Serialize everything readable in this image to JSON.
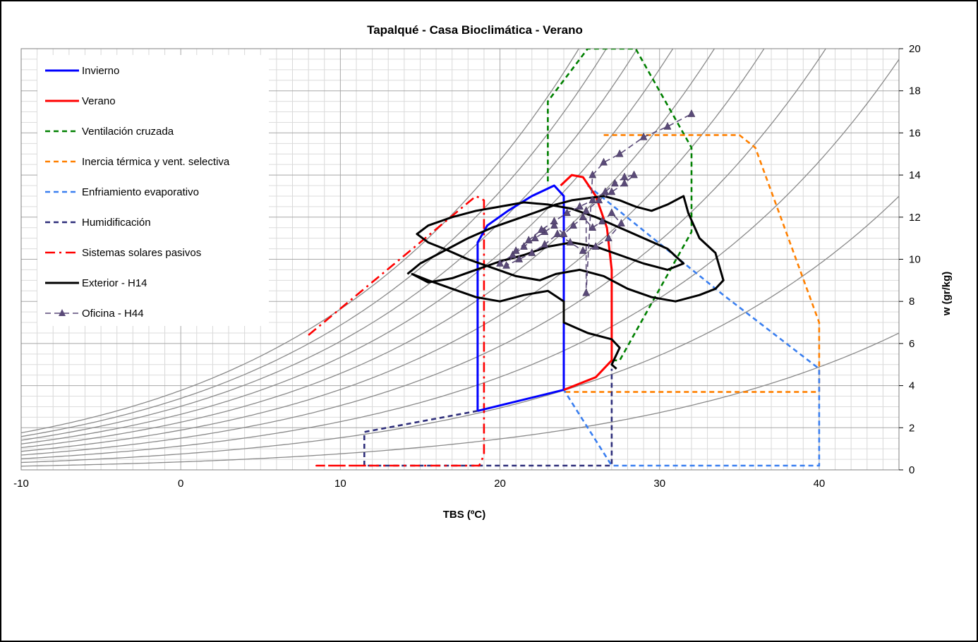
{
  "chart_data": {
    "type": "line",
    "title": "Tapalqué - Casa Bioclimática - Verano",
    "xlabel": "TBS (ºC)",
    "ylabel": "w (gr/kg)",
    "xlim": [
      -10,
      45
    ],
    "ylim": [
      0,
      20
    ],
    "x_ticks": [
      "-10",
      "0",
      "10",
      "20",
      "30",
      "40"
    ],
    "y_ticks": [
      "0",
      "2",
      "4",
      "6",
      "8",
      "10",
      "12",
      "14",
      "16",
      "18",
      "20"
    ],
    "grid": true,
    "legend_position": "top-left",
    "series": [
      {
        "name": "Invierno",
        "color": "#0000ff",
        "style": "solid",
        "x": [
          18.6,
          24.0,
          24.0,
          23.4,
          22.0,
          20.5,
          19.2,
          18.6,
          18.6
        ],
        "y": [
          2.8,
          3.8,
          13.0,
          13.5,
          13.0,
          12.3,
          11.6,
          10.8,
          2.8
        ]
      },
      {
        "name": "Verano",
        "color": "#ff0000",
        "style": "solid",
        "x": [
          24.0,
          26.0,
          27.0,
          27.0,
          26.7,
          26.0,
          25.2,
          24.5,
          23.8
        ],
        "y": [
          3.8,
          4.4,
          5.2,
          9.5,
          11.5,
          13.0,
          13.9,
          14.0,
          13.5
        ]
      },
      {
        "name": "Ventilación cruzada",
        "color": "#008000",
        "style": "dash",
        "x": [
          23.0,
          23.0,
          25.5,
          28.5,
          32.0,
          32.0,
          27.5,
          27.0
        ],
        "y": [
          13.7,
          17.5,
          20.0,
          20.0,
          15.3,
          11.3,
          5.2,
          5.2
        ]
      },
      {
        "name": "Inercia térmica y vent. selectiva",
        "color": "#ff8000",
        "style": "dash",
        "x": [
          26.5,
          35.0,
          36.0,
          40.0,
          40.0,
          24.0
        ],
        "y": [
          15.9,
          15.9,
          15.3,
          7.0,
          3.7,
          3.7
        ]
      },
      {
        "name": "Enfriamiento evaporativo",
        "color": "#3a7ff0",
        "style": "dash",
        "x": [
          25.5,
          34.0,
          40.0,
          40.0,
          27.0,
          24.0
        ],
        "y": [
          13.5,
          8.3,
          4.8,
          0.2,
          0.2,
          3.8
        ]
      },
      {
        "name": "Humidificación",
        "color": "#2e2e7a",
        "style": "dash",
        "x": [
          18.6,
          11.5,
          11.5,
          27.0,
          27.0
        ],
        "y": [
          2.8,
          1.8,
          0.2,
          0.2,
          4.8
        ]
      },
      {
        "name": "Sistemas solares pasivos",
        "color": "#ff0000",
        "style": "dashdot",
        "x": [
          8.0,
          18.5,
          19.0,
          19.0,
          18.7,
          8.5,
          12.0
        ],
        "y": [
          6.4,
          13.0,
          12.8,
          0.7,
          0.2,
          0.2,
          0.2
        ]
      },
      {
        "name": "Exterior - H14",
        "color": "#000000",
        "style": "solid",
        "x": [
          14.2,
          15.0,
          16.5,
          18.0,
          19.5,
          21.0,
          22.5,
          23.5,
          24.5,
          25.5,
          26.5,
          27.5,
          28.5,
          29.5,
          30.5,
          31.5,
          31.8,
          32.5,
          33.5,
          34.0,
          33.5,
          32.5,
          31.0,
          29.5,
          28.0,
          26.5,
          25.0,
          23.5,
          22.5,
          21.0,
          19.5,
          18.0,
          16.5,
          15.5,
          14.8,
          15.5,
          17.0,
          18.5,
          20.0,
          21.5,
          23.0,
          24.5,
          26.0,
          27.5,
          29.0,
          30.5,
          31.5,
          30.5,
          29.0,
          27.5,
          26.0,
          24.5,
          23.0,
          21.5,
          20.0,
          18.5,
          17.0,
          15.5,
          14.5,
          15.5,
          17.0,
          18.5,
          20.0,
          21.5,
          23.0,
          24.0,
          24.0,
          25.5,
          27.0,
          27.5,
          27.0,
          27.3
        ],
        "y": [
          9.3,
          9.8,
          10.4,
          11.0,
          11.5,
          11.9,
          12.3,
          12.6,
          12.8,
          12.9,
          13.0,
          12.8,
          12.5,
          12.3,
          12.6,
          13.0,
          12.2,
          11.0,
          10.3,
          9.0,
          8.6,
          8.3,
          8.0,
          8.2,
          8.6,
          9.2,
          9.5,
          9.3,
          9.0,
          9.2,
          9.6,
          10.0,
          10.5,
          10.8,
          11.2,
          11.6,
          12.0,
          12.3,
          12.5,
          12.7,
          12.6,
          12.4,
          12.0,
          11.5,
          11.0,
          10.5,
          9.8,
          9.5,
          9.8,
          10.2,
          10.6,
          10.8,
          10.6,
          10.2,
          9.9,
          9.5,
          9.1,
          8.9,
          9.3,
          9.0,
          8.6,
          8.2,
          8.0,
          8.3,
          8.5,
          8.0,
          7.0,
          6.5,
          6.2,
          5.8,
          5.0,
          4.8
        ]
      },
      {
        "name": "Oficina - H44",
        "color": "#5a4a78",
        "style": "dash-marker",
        "x": [
          20.0,
          20.8,
          21.5,
          22.2,
          22.8,
          23.4,
          24.0,
          24.6,
          25.2,
          25.8,
          26.4,
          27.0,
          27.6,
          26.8,
          26.0,
          25.2,
          24.4,
          23.6,
          22.8,
          22.0,
          21.2,
          20.4,
          21.0,
          21.8,
          22.6,
          23.4,
          24.2,
          25.0,
          25.8,
          26.6,
          27.2,
          27.8,
          28.4,
          27.8,
          27.0,
          26.2,
          25.4,
          25.4,
          25.8,
          26.5,
          27.5,
          29.0,
          30.5,
          32.0
        ],
        "y": [
          9.8,
          10.2,
          10.6,
          11.0,
          11.3,
          11.6,
          11.2,
          11.6,
          12.0,
          11.5,
          11.8,
          12.2,
          11.7,
          11.0,
          10.6,
          10.4,
          10.8,
          11.2,
          10.7,
          10.3,
          10.0,
          9.7,
          10.4,
          10.9,
          11.4,
          11.8,
          12.2,
          12.5,
          12.8,
          13.2,
          13.6,
          13.9,
          14.0,
          13.6,
          13.2,
          12.8,
          12.3,
          8.4,
          14.0,
          14.6,
          15.0,
          15.8,
          16.3,
          16.9
        ]
      }
    ]
  }
}
